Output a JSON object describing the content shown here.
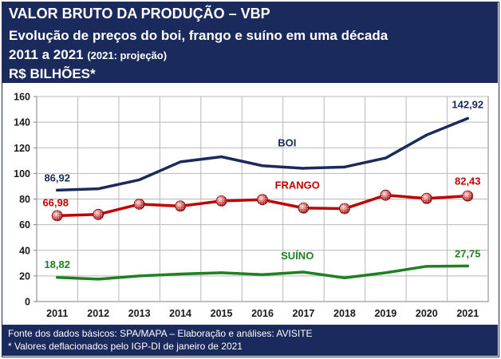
{
  "header": {
    "line1": "VALOR BRUTO DA PRODUÇÃO – VBP",
    "line2": "Evolução de preços do boi, frango e suíno em uma década",
    "line3_main": "2011 a 2021",
    "line3_note": "(2021: projeção)",
    "line4": "R$ BILHÕES*"
  },
  "footer": {
    "source": "Fonte dos dados básicos: SPA/MAPA – Elaboração e análises: AVISITE",
    "note": "* Valores deflacionados pelo IGP-DI de janeiro de 2021"
  },
  "chart_data": {
    "type": "line",
    "title": "",
    "xlabel": "",
    "ylabel": "",
    "x": [
      "2011",
      "2012",
      "2013",
      "2014",
      "2015",
      "2016",
      "2017",
      "2018",
      "2019",
      "2020",
      "2021"
    ],
    "ylim": [
      0,
      160
    ],
    "yticks": [
      0,
      20,
      40,
      60,
      80,
      100,
      120,
      140,
      160
    ],
    "grid": true,
    "series": [
      {
        "name": "BOI",
        "color": "#1b2a5c",
        "values": [
          86.92,
          88,
          95,
          109,
          113,
          106,
          104,
          105,
          112,
          130,
          142.92
        ],
        "labels": [
          {
            "index": 0,
            "text": "86,92"
          },
          {
            "index": 10,
            "text": "142,92"
          }
        ]
      },
      {
        "name": "FRANGO",
        "color": "#c00000",
        "values": [
          66.98,
          68,
          76,
          74.5,
          78.5,
          79.5,
          73,
          72.5,
          83,
          80.5,
          82.43
        ],
        "labels": [
          {
            "index": 0,
            "text": "66,98"
          },
          {
            "index": 10,
            "text": "82,43"
          }
        ]
      },
      {
        "name": "SUÍNO",
        "color": "#1e8020",
        "values": [
          18.82,
          17.5,
          20,
          21.5,
          22.5,
          21,
          23,
          18.5,
          22.5,
          27.5,
          27.75
        ],
        "labels": [
          {
            "index": 0,
            "text": "18,82"
          },
          {
            "index": 10,
            "text": "27,75"
          }
        ]
      }
    ]
  }
}
